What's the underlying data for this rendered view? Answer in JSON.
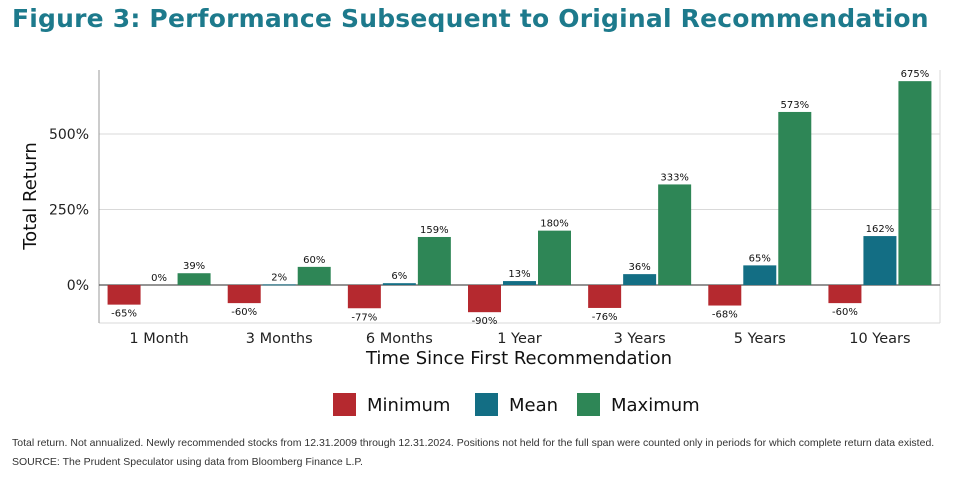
{
  "title": "Figure 3: Performance Subsequent to Original Recommendation",
  "chart_data": {
    "type": "bar",
    "categories": [
      "1 Month",
      "3 Months",
      "6 Months",
      "1 Year",
      "3 Years",
      "5 Years",
      "10 Years"
    ],
    "series": [
      {
        "name": "Minimum",
        "color": "#b5292f",
        "values": [
          -65,
          -60,
          -77,
          -90,
          -76,
          -68,
          -60
        ],
        "labels": [
          "-65%",
          "-60%",
          "-77%",
          "-90%",
          "-76%",
          "-68%",
          "-60%"
        ]
      },
      {
        "name": "Mean",
        "color": "#136e84",
        "values": [
          0,
          2,
          6,
          13,
          36,
          65,
          162
        ],
        "labels": [
          "0%",
          "2%",
          "6%",
          "13%",
          "36%",
          "65%",
          "162%"
        ]
      },
      {
        "name": "Maximum",
        "color": "#2e8656",
        "values": [
          39,
          60,
          159,
          180,
          333,
          573,
          675
        ],
        "labels": [
          "39%",
          "60%",
          "159%",
          "180%",
          "333%",
          "573%",
          "675%"
        ]
      }
    ],
    "xlabel": "Time Since First Recommendation",
    "ylabel": "Total Return",
    "yticks": [
      0,
      250,
      500
    ],
    "ytick_labels": [
      "0%",
      "250%",
      "500%"
    ],
    "ylim": [
      -130,
      710
    ],
    "grid": true,
    "legend": "bottom-center"
  },
  "footnote": "Total return. Not annualized. Newly recommended stocks from 12.31.2009 through 12.31.2024. Positions not held for the full span were counted only in periods for which complete return data existed. SOURCE: The Prudent Speculator using data from Bloomberg Finance L.P."
}
